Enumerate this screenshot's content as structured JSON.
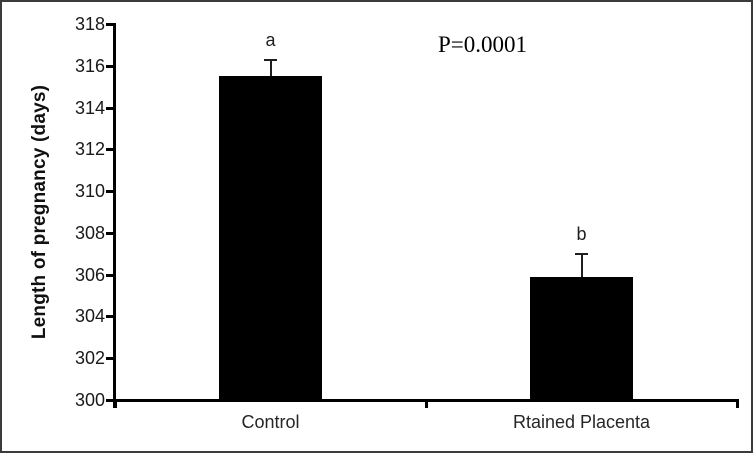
{
  "figure": {
    "background": "#ffffff",
    "border_color": "#3b3b3b"
  },
  "chart_data": {
    "type": "bar",
    "title": "",
    "xlabel": "",
    "ylabel": "Length of pregnancy (days)",
    "ylim": [
      300,
      318
    ],
    "ytick_step": 2,
    "yticks": [
      300,
      302,
      304,
      306,
      308,
      310,
      312,
      314,
      316,
      318
    ],
    "categories": [
      "Control",
      "Rtained Placenta"
    ],
    "values": [
      315.5,
      305.9
    ],
    "error_upper": [
      0.8,
      1.1
    ],
    "sig_letters": [
      "a",
      "b"
    ],
    "annotation": "P=0.0001",
    "bar_color": "#000000",
    "axis_color": "#000000",
    "tick_label_color": "#1a1a1a",
    "grid": false
  }
}
